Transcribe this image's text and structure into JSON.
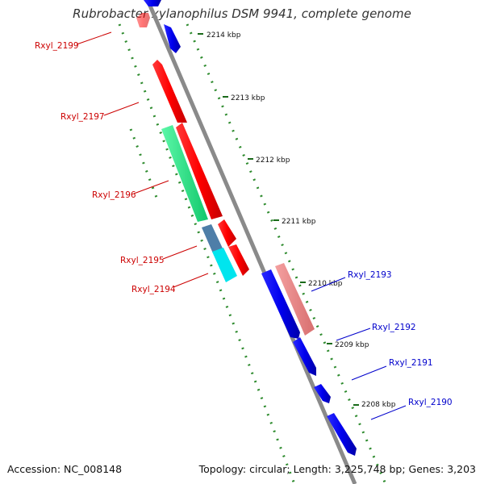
{
  "title": "Rubrobacter xylanophilus DSM 9941, complete genome",
  "accession": "Accession: NC_008148",
  "topology": "Topology: circular; Length: 3,225,748 bp; Genes: 3,203",
  "colors": {
    "backbone": "#8a8a8a",
    "tick_dots": "#2e8b2e",
    "gene_red": "#ff0000",
    "gene_pink": "#ea8585",
    "gene_blue": "#0000ee",
    "gene_green": "#1de07c",
    "gene_steel": "#4e7ea8",
    "gene_cyan": "#00e5ee",
    "label_left": "#cc0000",
    "label_right": "#0000cc"
  },
  "scale_ticks": [
    {
      "label": "2214 kbp"
    },
    {
      "label": "2213 kbp"
    },
    {
      "label": "2212 kbp"
    },
    {
      "label": "2211 kbp"
    },
    {
      "label": "2210 kbp"
    },
    {
      "label": "2209 kbp"
    },
    {
      "label": "2208 kbp"
    }
  ],
  "genes_left": [
    {
      "name": "Rxyl_2199"
    },
    {
      "name": "Rxyl_2197"
    },
    {
      "name": "Rxyl_2196"
    },
    {
      "name": "Rxyl_2195"
    },
    {
      "name": "Rxyl_2194"
    }
  ],
  "genes_right": [
    {
      "name": "Rxyl_2193"
    },
    {
      "name": "Rxyl_2192"
    },
    {
      "name": "Rxyl_2191"
    },
    {
      "name": "Rxyl_2190"
    }
  ]
}
